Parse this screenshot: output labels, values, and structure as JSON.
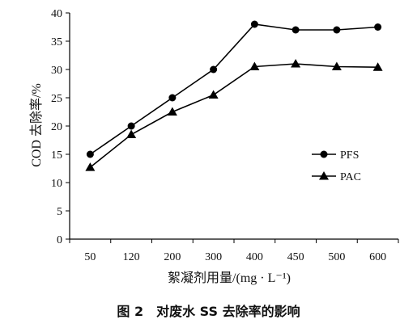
{
  "caption": "图 2　对废水 SS 去除率的影响",
  "chart_data": {
    "type": "line",
    "categories": [
      "50",
      "120",
      "200",
      "300",
      "400",
      "450",
      "500",
      "600"
    ],
    "series": [
      {
        "name": "PFS",
        "marker": "circle",
        "values": [
          15.0,
          20.0,
          25.0,
          30.0,
          38.0,
          37.0,
          37.0,
          37.5
        ]
      },
      {
        "name": "PAC",
        "marker": "triangle",
        "values": [
          12.7,
          18.5,
          22.5,
          25.5,
          30.5,
          31.0,
          30.5,
          30.4
        ]
      }
    ],
    "xlabel": "絮凝剂用量/(mg · L⁻¹)",
    "ylabel": "COD 去除率/%",
    "ylim": [
      0,
      40
    ],
    "yticks": [
      "0",
      "5",
      "10",
      "15",
      "20",
      "25",
      "30",
      "35",
      "40"
    ],
    "legend_position": "right",
    "grid": false,
    "color": "#000000"
  }
}
